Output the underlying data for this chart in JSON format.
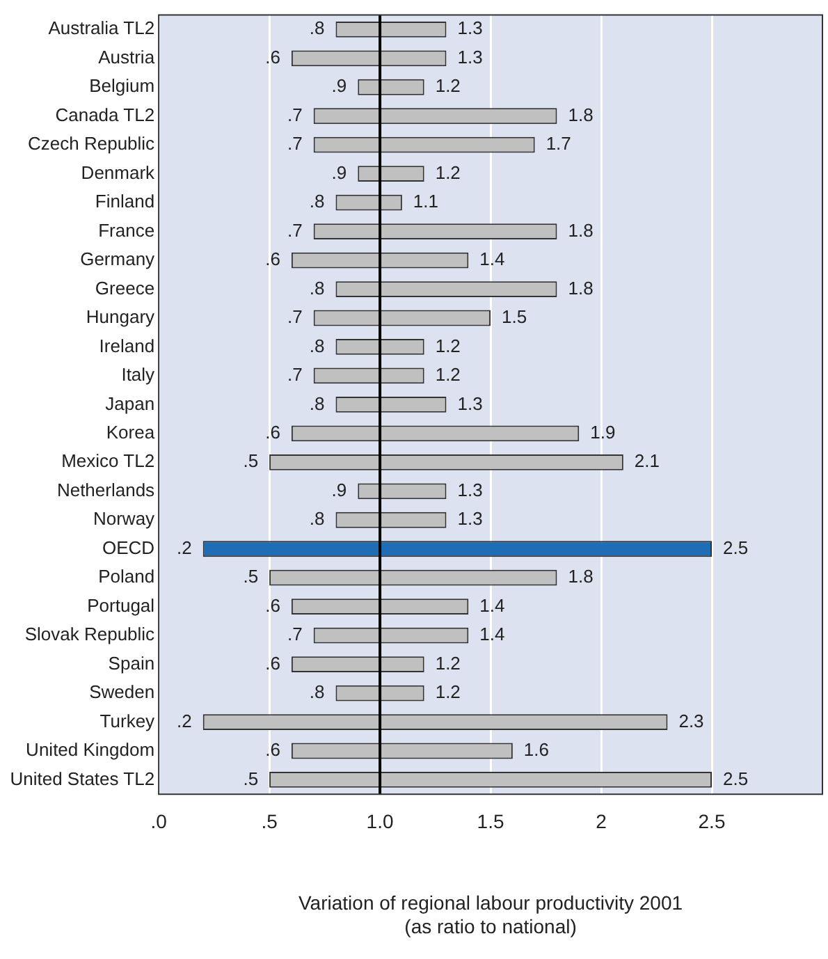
{
  "chart_data": {
    "type": "bar",
    "orientation": "horizontal",
    "xlabel": "Variation of regional labour productivity 2001\n(as ratio to national)",
    "categories": [
      "Australia TL2",
      "Austria",
      "Belgium",
      "Canada TL2",
      "Czech Republic",
      "Denmark",
      "Finland",
      "France",
      "Germany",
      "Greece",
      "Hungary",
      "Ireland",
      "Italy",
      "Japan",
      "Korea",
      "Mexico TL2",
      "Netherlands",
      "Norway",
      "OECD",
      "Poland",
      "Portugal",
      "Slovak Republic",
      "Spain",
      "Sweden",
      "Turkey",
      "United Kingdom",
      "United States TL2"
    ],
    "base": [
      0.8,
      0.6,
      0.9,
      0.7,
      0.7,
      0.9,
      0.8,
      0.7,
      0.6,
      0.8,
      0.7,
      0.8,
      0.7,
      0.8,
      0.6,
      0.5,
      0.9,
      0.8,
      0.2,
      0.5,
      0.6,
      0.7,
      0.6,
      0.8,
      0.2,
      0.6,
      0.5
    ],
    "values": [
      0.5,
      0.7,
      0.3,
      1.1,
      1.0,
      0.3,
      0.3,
      1.1,
      0.8,
      1.0,
      0.8,
      0.4,
      0.5,
      0.5,
      1.3,
      1.6,
      0.4,
      0.5,
      2.3,
      1.3,
      0.8,
      0.7,
      0.6,
      0.4,
      2.1,
      1.0,
      2.0
    ],
    "colors": [
      "#c0c0c0",
      "#c0c0c0",
      "#c0c0c0",
      "#c0c0c0",
      "#c0c0c0",
      "#c0c0c0",
      "#c0c0c0",
      "#c0c0c0",
      "#c0c0c0",
      "#c0c0c0",
      "#c0c0c0",
      "#c0c0c0",
      "#c0c0c0",
      "#c0c0c0",
      "#c0c0c0",
      "#c0c0c0",
      "#c0c0c0",
      "#c0c0c0",
      "#1f6db5",
      "#c0c0c0",
      "#c0c0c0",
      "#c0c0c0",
      "#c0c0c0",
      "#c0c0c0",
      "#c0c0c0",
      "#c0c0c0",
      "#c0c0c0"
    ],
    "xlim": [
      0,
      3
    ],
    "xticks": [
      {
        "value": 0,
        "label": ".0"
      },
      {
        "value": 0.5,
        "label": ".5"
      },
      {
        "value": 1,
        "label": "1.0"
      },
      {
        "value": 1.5,
        "label": "1.5"
      },
      {
        "value": 2,
        "label": "2"
      },
      {
        "value": 2.5,
        "label": "2.5"
      }
    ],
    "ref_lines": [
      {
        "axis": "x",
        "value": 1,
        "color": "#000000"
      }
    ],
    "grid": "x",
    "legend": false,
    "annotations": [
      {
        "text": ".8",
        "x": 0.8,
        "y": "Australia TL2"
      },
      {
        "text": "1.3",
        "x": 1.3,
        "y": "Australia TL2"
      },
      {
        "text": ".6",
        "x": 0.6,
        "y": "Austria"
      },
      {
        "text": "1.3",
        "x": 1.3,
        "y": "Austria"
      },
      {
        "text": ".9",
        "x": 0.9,
        "y": "Belgium"
      },
      {
        "text": "1.2",
        "x": 1.2,
        "y": "Belgium"
      },
      {
        "text": ".7",
        "x": 0.7,
        "y": "Canada TL2"
      },
      {
        "text": "1.8",
        "x": 1.8,
        "y": "Canada TL2"
      },
      {
        "text": ".7",
        "x": 0.7,
        "y": "Czech Republic"
      },
      {
        "text": "1.7",
        "x": 1.7,
        "y": "Czech Republic"
      },
      {
        "text": ".9",
        "x": 0.9,
        "y": "Denmark"
      },
      {
        "text": "1.2",
        "x": 1.2,
        "y": "Denmark"
      },
      {
        "text": ".8",
        "x": 0.8,
        "y": "Finland"
      },
      {
        "text": "1.1",
        "x": 1.1,
        "y": "Finland"
      },
      {
        "text": ".7",
        "x": 0.7,
        "y": "France"
      },
      {
        "text": "1.8",
        "x": 1.8,
        "y": "France"
      },
      {
        "text": ".6",
        "x": 0.6,
        "y": "Germany"
      },
      {
        "text": "1.4",
        "x": 1.4,
        "y": "Germany"
      },
      {
        "text": ".8",
        "x": 0.8,
        "y": "Greece"
      },
      {
        "text": "1.8",
        "x": 1.8,
        "y": "Greece"
      },
      {
        "text": ".7",
        "x": 0.7,
        "y": "Hungary"
      },
      {
        "text": "1.5",
        "x": 1.5,
        "y": "Hungary"
      },
      {
        "text": ".8",
        "x": 0.8,
        "y": "Ireland"
      },
      {
        "text": "1.2",
        "x": 1.2,
        "y": "Ireland"
      },
      {
        "text": ".7",
        "x": 0.7,
        "y": "Italy"
      },
      {
        "text": "1.2",
        "x": 1.2,
        "y": "Italy"
      },
      {
        "text": ".8",
        "x": 0.8,
        "y": "Japan"
      },
      {
        "text": "1.3",
        "x": 1.3,
        "y": "Japan"
      },
      {
        "text": ".6",
        "x": 0.6,
        "y": "Korea"
      },
      {
        "text": "1.9",
        "x": 1.9,
        "y": "Korea"
      },
      {
        "text": ".5",
        "x": 0.5,
        "y": "Mexico TL2"
      },
      {
        "text": "2.1",
        "x": 2.1,
        "y": "Mexico TL2"
      },
      {
        "text": ".9",
        "x": 0.9,
        "y": "Netherlands"
      },
      {
        "text": "1.3",
        "x": 1.3,
        "y": "Netherlands"
      },
      {
        "text": ".8",
        "x": 0.8,
        "y": "Norway"
      },
      {
        "text": "1.3",
        "x": 1.3,
        "y": "Norway"
      },
      {
        "text": ".2",
        "x": 0.2,
        "y": "OECD"
      },
      {
        "text": "2.5",
        "x": 2.5,
        "y": "OECD"
      },
      {
        "text": ".5",
        "x": 0.5,
        "y": "Poland"
      },
      {
        "text": "1.8",
        "x": 1.8,
        "y": "Poland"
      },
      {
        "text": ".6",
        "x": 0.6,
        "y": "Portugal"
      },
      {
        "text": "1.4",
        "x": 1.4,
        "y": "Portugal"
      },
      {
        "text": ".7",
        "x": 0.7,
        "y": "Slovak Republic"
      },
      {
        "text": "1.4",
        "x": 1.4,
        "y": "Slovak Republic"
      },
      {
        "text": ".6",
        "x": 0.6,
        "y": "Spain"
      },
      {
        "text": "1.2",
        "x": 1.2,
        "y": "Spain"
      },
      {
        "text": ".8",
        "x": 0.8,
        "y": "Sweden"
      },
      {
        "text": "1.2",
        "x": 1.2,
        "y": "Sweden"
      },
      {
        "text": ".2",
        "x": 0.2,
        "y": "Turkey"
      },
      {
        "text": "2.3",
        "x": 2.3,
        "y": "Turkey"
      },
      {
        "text": ".6",
        "x": 0.6,
        "y": "United Kingdom"
      },
      {
        "text": "1.6",
        "x": 1.6,
        "y": "United Kingdom"
      },
      {
        "text": ".5",
        "x": 0.5,
        "y": "United States TL2"
      },
      {
        "text": "2.5",
        "x": 2.5,
        "y": "United States TL2"
      }
    ]
  }
}
